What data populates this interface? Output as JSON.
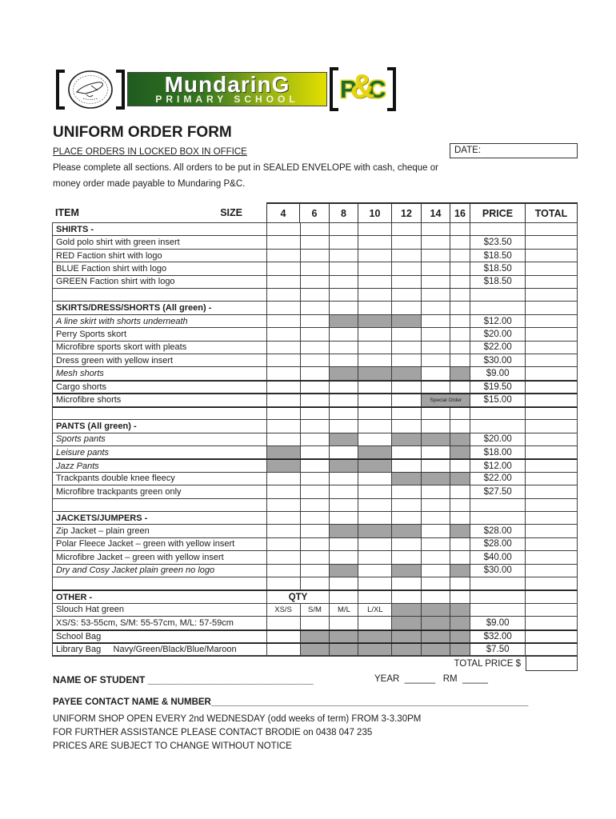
{
  "logo": {
    "bracket_open": "[",
    "bracket_close": "]",
    "school_name": "MundarinG",
    "school_subtitle": "PRIMARY SCHOOL",
    "pc_p": "P",
    "pc_amp": "&",
    "pc_c": "C",
    "colors": {
      "banner_green": "#1f5c20",
      "banner_yellow": "#e3df00",
      "pc_green": "#1b6c30",
      "pc_yellow": "#e8d51c"
    }
  },
  "header": {
    "title": "UNIFORM ORDER FORM",
    "subtitle": "PLACE ORDERS IN LOCKED BOX IN OFFICE",
    "date_label": "DATE:",
    "instructions": "Please complete all sections.  All orders to be put in SEALED ENVELOPE with cash, cheque or\nmoney order made payable to Mundaring P&C."
  },
  "table": {
    "item_header": "ITEM",
    "size_header": "SIZE",
    "size_cols": [
      "4",
      "6",
      "8",
      "10",
      "12",
      "14",
      "16"
    ],
    "price_header": "PRICE",
    "total_header": "TOTAL",
    "special_order_text": "Special Order",
    "gray_color": "#a3a3a3",
    "rows": [
      {
        "type": "section",
        "label": "SHIRTS -"
      },
      {
        "type": "item",
        "label": "Gold polo shirt with green insert",
        "price": "$23.50"
      },
      {
        "type": "item",
        "label": "RED Faction shirt with logo",
        "price": "$18.50"
      },
      {
        "type": "item",
        "label": "BLUE Faction shirt with logo",
        "price": "$18.50"
      },
      {
        "type": "item",
        "label": "GREEN Faction shirt with logo",
        "price": "$18.50"
      },
      {
        "type": "empty"
      },
      {
        "type": "section",
        "label": "SKIRTS/DRESS/SHORTS (All green) -"
      },
      {
        "type": "item",
        "label": "A line skirt with shorts underneath",
        "italic": true,
        "price": "$12.00",
        "gray": [
          "8",
          "10",
          "12"
        ]
      },
      {
        "type": "item",
        "label": "Perry Sports skort",
        "price": "$20.00"
      },
      {
        "type": "item",
        "label": "Microfibre sports skort with pleats",
        "price": "$22.00"
      },
      {
        "type": "item",
        "label": "Dress green with yellow insert",
        "price": "$30.00"
      },
      {
        "type": "item",
        "label": "Mesh shorts",
        "italic": true,
        "price": "$9.00",
        "gray": [
          "8",
          "10",
          "12",
          "16"
        ]
      },
      {
        "type": "item",
        "label": "Cargo shorts",
        "price": "$19.50",
        "thick": true
      },
      {
        "type": "item",
        "label": "Microfibre shorts",
        "price": "$15.00",
        "special": true,
        "thick": true
      },
      {
        "type": "empty",
        "thick": true
      },
      {
        "type": "section",
        "label": "PANTS (All green) -"
      },
      {
        "type": "item",
        "label": "Sports pants",
        "italic": true,
        "price": "$20.00",
        "gray": [
          "8",
          "12",
          "14",
          "16"
        ]
      },
      {
        "type": "item",
        "label": "Leisure pants",
        "italic": true,
        "price": "$18.00",
        "gray": [
          "4",
          "10",
          "16"
        ]
      },
      {
        "type": "item",
        "label": "Jazz Pants",
        "italic": true,
        "price": "$12.00",
        "gray": [
          "4",
          "8",
          "10"
        ],
        "thick": true
      },
      {
        "type": "item",
        "label": "Trackpants double knee fleecy",
        "price": "$22.00",
        "gray": [
          "12",
          "14",
          "16"
        ]
      },
      {
        "type": "item",
        "label": "Microfibre trackpants green only",
        "price": "$27.50"
      },
      {
        "type": "empty"
      },
      {
        "type": "section",
        "label": "JACKETS/JUMPERS -"
      },
      {
        "type": "item",
        "label": "Zip Jacket – plain green",
        "price": "$28.00",
        "gray": [
          "8",
          "10",
          "12",
          "16"
        ]
      },
      {
        "type": "item",
        "label": "Polar Fleece Jacket – green with yellow insert",
        "price": "$28.00"
      },
      {
        "type": "item",
        "label": "Microfibre Jacket – green with yellow insert",
        "price": "$40.00"
      },
      {
        "type": "item",
        "label": "Dry and Cosy Jacket plain green no logo",
        "italic": true,
        "price": "$30.00",
        "gray": [
          "8",
          "12",
          "16"
        ]
      },
      {
        "type": "empty"
      },
      {
        "type": "section",
        "label": "OTHER -",
        "qty": "QTY",
        "thick": true
      },
      {
        "type": "item",
        "label": "Slouch Hat green",
        "sizes": [
          "XS/S",
          "S/M",
          "M/L",
          "L/XL"
        ],
        "gray": [
          "12",
          "14",
          "16"
        ]
      },
      {
        "type": "item",
        "label": "XS/S: 53-55cm, S/M: 55-57cm, M/L: 57-59cm",
        "price": "$9.00",
        "gray": [
          "12",
          "14",
          "16"
        ]
      },
      {
        "type": "item",
        "label": "School Bag",
        "price": "$32.00",
        "gray": [
          "6",
          "8",
          "10",
          "12",
          "14",
          "16"
        ],
        "thick": true
      },
      {
        "type": "item",
        "label": "Library Bag     Navy/Green/Black/Blue/Maroon",
        "price": "$7.50",
        "gray": [
          "6",
          "8",
          "10",
          "12",
          "14",
          "16"
        ],
        "thick": true
      }
    ]
  },
  "footer": {
    "total_price_label": "TOTAL PRICE $",
    "name_label": "NAME OF STUDENT",
    "name_line": "_______________________________",
    "year_label": "YEAR",
    "year_line": "______",
    "rm_label": "RM",
    "rm_line": "_____",
    "payee_label": "PAYEE CONTACT NAME & NUMBER",
    "payee_line": "______________________________________________________________",
    "note1": "UNIFORM SHOP OPEN EVERY 2nd WEDNESDAY (odd weeks of term) FROM 3-3.30PM",
    "note2": "FOR FURTHER ASSISTANCE PLEASE CONTACT BRODIE on 0438 047 235",
    "note3": "PRICES ARE SUBJECT TO CHANGE WITHOUT NOTICE"
  }
}
